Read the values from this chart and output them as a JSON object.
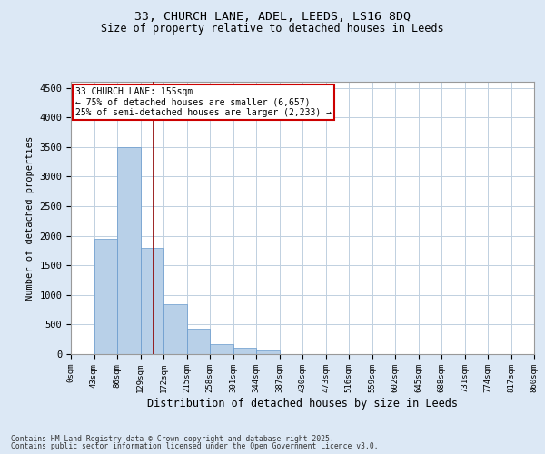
{
  "title_line1": "33, CHURCH LANE, ADEL, LEEDS, LS16 8DQ",
  "title_line2": "Size of property relative to detached houses in Leeds",
  "xlabel": "Distribution of detached houses by size in Leeds",
  "ylabel": "Number of detached properties",
  "bin_labels": [
    "0sqm",
    "43sqm",
    "86sqm",
    "129sqm",
    "172sqm",
    "215sqm",
    "258sqm",
    "301sqm",
    "344sqm",
    "387sqm",
    "430sqm",
    "473sqm",
    "516sqm",
    "559sqm",
    "602sqm",
    "645sqm",
    "688sqm",
    "731sqm",
    "774sqm",
    "817sqm",
    "860sqm"
  ],
  "bar_values": [
    5,
    1950,
    3500,
    1800,
    850,
    430,
    175,
    110,
    55,
    0,
    0,
    0,
    0,
    0,
    0,
    0,
    0,
    0,
    0,
    0
  ],
  "bar_color": "#b8d0e8",
  "bar_edgecolor": "#6699cc",
  "vline_x": 3.58,
  "vline_color": "#8b0000",
  "annotation_text": "33 CHURCH LANE: 155sqm\n← 75% of detached houses are smaller (6,657)\n25% of semi-detached houses are larger (2,233) →",
  "annotation_box_color": "#cc0000",
  "annotation_bg": "white",
  "ylim": [
    0,
    4600
  ],
  "yticks": [
    0,
    500,
    1000,
    1500,
    2000,
    2500,
    3000,
    3500,
    4000,
    4500
  ],
  "footer_line1": "Contains HM Land Registry data © Crown copyright and database right 2025.",
  "footer_line2": "Contains public sector information licensed under the Open Government Licence v3.0.",
  "bg_color": "#dce8f5",
  "plot_bg_color": "white",
  "grid_color": "#c0d0e0"
}
